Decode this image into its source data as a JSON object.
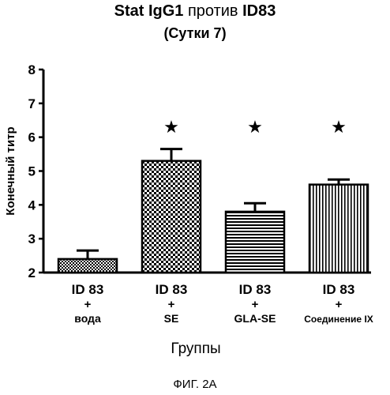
{
  "title": {
    "part1": "Stat IgG1",
    "part2": " против ",
    "part3": "ID83"
  },
  "subtitle": "(Сутки 7)",
  "caption": "ФИГ. 2А",
  "chart_data": {
    "type": "bar",
    "title": "Stat IgG1 против ID83",
    "subtitle": "(Сутки 7)",
    "xlabel": "Группы",
    "ylabel": "Конечный титр",
    "ylim": [
      2,
      8
    ],
    "yticks": [
      "2",
      "3",
      "4",
      "5",
      "6",
      "7",
      "8"
    ],
    "grid": false,
    "categories": [
      [
        "ID 83",
        "+",
        "вода"
      ],
      [
        "ID 83",
        "+",
        "SE"
      ],
      [
        "ID 83",
        "+",
        "GLA-SE"
      ],
      [
        "ID 83",
        "+",
        "Соединение IX"
      ]
    ],
    "values": [
      2.4,
      5.3,
      3.8,
      4.6
    ],
    "errors": [
      0.25,
      0.35,
      0.25,
      0.15
    ],
    "significant": [
      false,
      true,
      true,
      true
    ],
    "significance_marker": "★",
    "fill_patterns": [
      "checker",
      "checker-large",
      "horizontal-lines",
      "vertical-lines"
    ]
  }
}
